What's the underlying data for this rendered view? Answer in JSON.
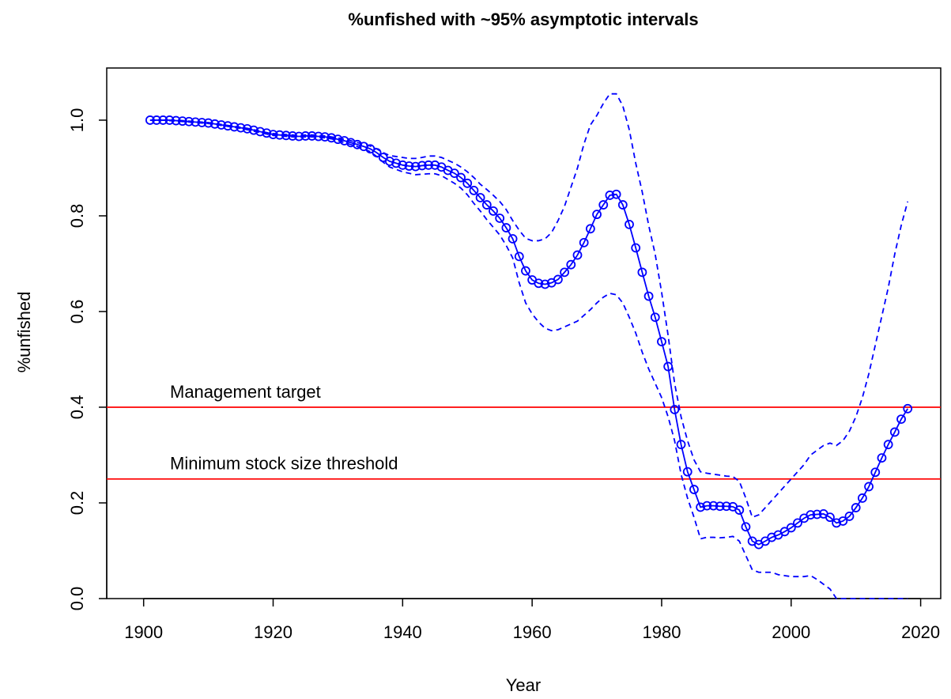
{
  "chart_data": {
    "type": "line",
    "title": "%unfished with ~95% asymptotic intervals",
    "x_label": "Year",
    "y_label": "%unfished",
    "xlim": [
      1894.3,
      2023.1
    ],
    "ylim": [
      0,
      1.109
    ],
    "xticks": [
      1900,
      1920,
      1940,
      1960,
      1980,
      2000,
      2020
    ],
    "yticks": [
      {
        "value": 0,
        "label": "0.0"
      },
      0.2,
      0.4,
      0.6,
      0.8,
      {
        "value": 1,
        "label": "1.0"
      }
    ],
    "x": [
      1901,
      1902,
      1903,
      1904,
      1905,
      1906,
      1907,
      1908,
      1909,
      1910,
      1911,
      1912,
      1913,
      1914,
      1915,
      1916,
      1917,
      1918,
      1919,
      1920,
      1921,
      1922,
      1923,
      1924,
      1925,
      1926,
      1927,
      1928,
      1929,
      1930,
      1931,
      1932,
      1933,
      1934,
      1935,
      1936,
      1937,
      1938,
      1939,
      1940,
      1941,
      1942,
      1943,
      1944,
      1945,
      1946,
      1947,
      1948,
      1949,
      1950,
      1951,
      1952,
      1953,
      1954,
      1955,
      1956,
      1957,
      1958,
      1959,
      1960,
      1961,
      1962,
      1963,
      1964,
      1965,
      1966,
      1967,
      1968,
      1969,
      1970,
      1971,
      1972,
      1973,
      1974,
      1975,
      1976,
      1977,
      1978,
      1979,
      1980,
      1981,
      1982,
      1983,
      1984,
      1985,
      1986,
      1987,
      1988,
      1989,
      1990,
      1991,
      1992,
      1993,
      1994,
      1995,
      1996,
      1997,
      1998,
      1999,
      2000,
      2001,
      2002,
      2003,
      2004,
      2005,
      2006,
      2007,
      2008,
      2009,
      2010,
      2011,
      2012,
      2013,
      2014,
      2015,
      2016,
      2017,
      2018
    ],
    "series": [
      {
        "style": "line-points",
        "color": "#0000ff",
        "values": [
          1.0,
          1.0,
          1.0,
          1.0,
          0.999,
          0.998,
          0.997,
          0.996,
          0.995,
          0.994,
          0.992,
          0.99,
          0.988,
          0.986,
          0.984,
          0.982,
          0.979,
          0.976,
          0.973,
          0.97,
          0.969,
          0.968,
          0.967,
          0.966,
          0.967,
          0.967,
          0.966,
          0.965,
          0.963,
          0.96,
          0.957,
          0.953,
          0.949,
          0.945,
          0.94,
          0.932,
          0.922,
          0.914,
          0.91,
          0.906,
          0.904,
          0.903,
          0.905,
          0.906,
          0.906,
          0.902,
          0.895,
          0.889,
          0.88,
          0.868,
          0.853,
          0.838,
          0.823,
          0.81,
          0.795,
          0.775,
          0.752,
          0.715,
          0.685,
          0.666,
          0.659,
          0.657,
          0.66,
          0.667,
          0.682,
          0.698,
          0.718,
          0.744,
          0.773,
          0.803,
          0.823,
          0.843,
          0.845,
          0.823,
          0.782,
          0.733,
          0.682,
          0.632,
          0.588,
          0.537,
          0.485,
          0.395,
          0.322,
          0.265,
          0.228,
          0.191,
          0.194,
          0.194,
          0.193,
          0.193,
          0.192,
          0.185,
          0.15,
          0.12,
          0.113,
          0.12,
          0.128,
          0.133,
          0.14,
          0.148,
          0.158,
          0.168,
          0.175,
          0.176,
          0.177,
          0.17,
          0.158,
          0.162,
          0.172,
          0.19,
          0.21,
          0.234,
          0.264,
          0.294,
          0.322,
          0.348,
          0.375,
          0.397
        ]
      },
      {
        "style": "dashed",
        "color": "#0000ff",
        "values": [
          1.0,
          1.0,
          1.0,
          1.0,
          1.0,
          0.999,
          0.998,
          0.997,
          0.996,
          0.995,
          0.993,
          0.991,
          0.989,
          0.987,
          0.985,
          0.983,
          0.98,
          0.977,
          0.974,
          0.972,
          0.971,
          0.97,
          0.969,
          0.968,
          0.969,
          0.969,
          0.968,
          0.967,
          0.965,
          0.963,
          0.96,
          0.957,
          0.953,
          0.95,
          0.946,
          0.94,
          0.932,
          0.926,
          0.924,
          0.922,
          0.92,
          0.92,
          0.922,
          0.925,
          0.925,
          0.922,
          0.916,
          0.91,
          0.902,
          0.892,
          0.88,
          0.866,
          0.855,
          0.843,
          0.83,
          0.813,
          0.79,
          0.77,
          0.753,
          0.748,
          0.748,
          0.752,
          0.765,
          0.79,
          0.82,
          0.86,
          0.9,
          0.95,
          0.99,
          1.01,
          1.035,
          1.055,
          1.055,
          1.03,
          0.98,
          0.91,
          0.85,
          0.78,
          0.72,
          0.64,
          0.55,
          0.45,
          0.38,
          0.33,
          0.29,
          0.265,
          0.262,
          0.26,
          0.258,
          0.256,
          0.255,
          0.245,
          0.21,
          0.17,
          0.175,
          0.19,
          0.205,
          0.22,
          0.235,
          0.25,
          0.265,
          0.28,
          0.3,
          0.31,
          0.32,
          0.325,
          0.32,
          0.33,
          0.35,
          0.38,
          0.42,
          0.47,
          0.53,
          0.59,
          0.65,
          0.72,
          0.78,
          0.83
        ]
      },
      {
        "style": "dashed",
        "color": "#0000ff",
        "values": [
          1.0,
          1.0,
          1.0,
          0.999,
          0.998,
          0.997,
          0.996,
          0.995,
          0.994,
          0.993,
          0.991,
          0.989,
          0.987,
          0.985,
          0.983,
          0.98,
          0.977,
          0.974,
          0.971,
          0.968,
          0.967,
          0.966,
          0.965,
          0.964,
          0.965,
          0.965,
          0.964,
          0.963,
          0.961,
          0.957,
          0.953,
          0.949,
          0.945,
          0.94,
          0.934,
          0.924,
          0.912,
          0.902,
          0.897,
          0.892,
          0.889,
          0.886,
          0.887,
          0.888,
          0.888,
          0.884,
          0.876,
          0.868,
          0.858,
          0.844,
          0.826,
          0.81,
          0.792,
          0.776,
          0.76,
          0.738,
          0.712,
          0.66,
          0.618,
          0.595,
          0.578,
          0.565,
          0.56,
          0.562,
          0.568,
          0.574,
          0.58,
          0.592,
          0.604,
          0.618,
          0.63,
          0.638,
          0.635,
          0.618,
          0.588,
          0.555,
          0.515,
          0.48,
          0.45,
          0.42,
          0.38,
          0.33,
          0.26,
          0.21,
          0.17,
          0.125,
          0.128,
          0.128,
          0.127,
          0.128,
          0.13,
          0.12,
          0.09,
          0.06,
          0.055,
          0.055,
          0.055,
          0.05,
          0.048,
          0.046,
          0.046,
          0.046,
          0.048,
          0.04,
          0.03,
          0.02,
          0,
          0,
          0,
          0,
          0,
          0,
          0,
          0,
          0,
          0,
          0,
          0
        ]
      }
    ],
    "reference_lines": [
      {
        "value": 0.4,
        "label": "Management target",
        "color": "#ff0000"
      },
      {
        "value": 0.25,
        "label": "Minimum stock size threshold",
        "color": "#ff0000"
      }
    ]
  }
}
